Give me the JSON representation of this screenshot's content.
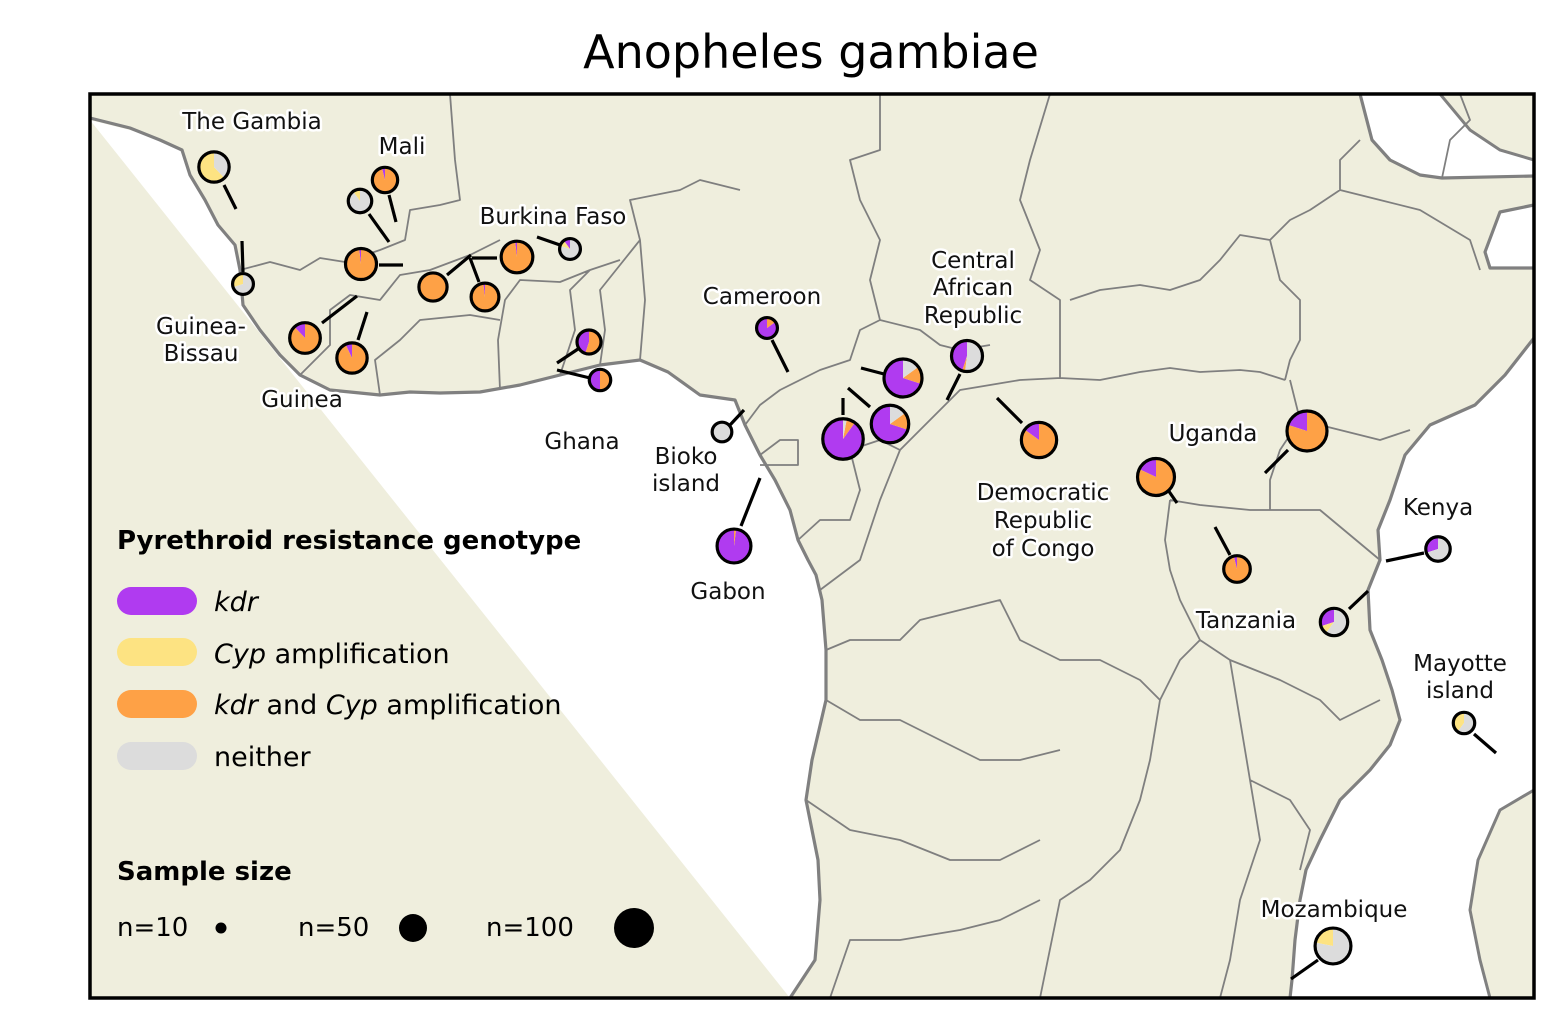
{
  "title": "Anopheles gambiae",
  "colors": {
    "kdr": "#b03bf0",
    "cyp": "#fde382",
    "kdr_cyp": "#fea146",
    "neither": "#dcdcdc",
    "land": "#efeedd",
    "sea": "#ffffff",
    "border": "#7f7f7f"
  },
  "country_labels": {
    "the_gambia": [
      "The Gambia"
    ],
    "mali": [
      "Mali"
    ],
    "burkina_faso": [
      "Burkina Faso"
    ],
    "guinea_bissau": [
      "Guinea-",
      "Bissau"
    ],
    "guinea": [
      "Guinea"
    ],
    "ghana": [
      "Ghana"
    ],
    "cameroon": [
      "Cameroon"
    ],
    "bioko": [
      "Bioko",
      "island"
    ],
    "gabon": [
      "Gabon"
    ],
    "car": [
      "Central",
      "African",
      "Republic"
    ],
    "drc": [
      "Democratic",
      "Republic",
      "of Congo"
    ],
    "uganda": [
      "Uganda"
    ],
    "kenya": [
      "Kenya"
    ],
    "tanzania": [
      "Tanzania"
    ],
    "mayotte": [
      "Mayotte",
      "island"
    ],
    "mozambique": [
      "Mozambique"
    ]
  },
  "legend": {
    "genotype_title": "Pyrethroid resistance genotype",
    "items": [
      {
        "key": "kdr",
        "pre_italic": "kdr",
        "text": ""
      },
      {
        "key": "cyp",
        "pre_italic": "Cyp",
        "text": " amplification"
      },
      {
        "key": "kdr_cyp",
        "pre_italic": "kdr",
        "mid": " and ",
        "post_italic": "Cyp",
        "text": " amplification"
      },
      {
        "key": "neither",
        "pre_italic": "",
        "text": "neither"
      }
    ],
    "size_title": "Sample size",
    "sizes": [
      {
        "label": "n=10",
        "n": 10
      },
      {
        "label": "n=50",
        "n": 50
      },
      {
        "label": "n=100",
        "n": 100
      }
    ]
  },
  "samples": [
    {
      "id": "gm",
      "country": "The Gambia",
      "n": 34,
      "fractions": {
        "kdr": 0,
        "cyp": 0.62,
        "kdr_cyp": 0,
        "neither": 0.38
      }
    },
    {
      "id": "ml-1",
      "country": "Mali",
      "n": 17,
      "fractions": {
        "kdr": 0,
        "cyp": 0.1,
        "kdr_cyp": 0,
        "neither": 0.9
      }
    },
    {
      "id": "ml-2",
      "country": "Mali",
      "n": 21,
      "fractions": {
        "kdr": 0.04,
        "cyp": 0,
        "kdr_cyp": 0.96,
        "neither": 0
      }
    },
    {
      "id": "gw",
      "country": "Guinea-Bissau",
      "n": 12,
      "fractions": {
        "kdr": 0,
        "cyp": 0.3,
        "kdr_cyp": 0,
        "neither": 0.7
      }
    },
    {
      "id": "ml-3",
      "country": "Mali",
      "n": 36,
      "fractions": {
        "kdr": 0.02,
        "cyp": 0,
        "kdr_cyp": 0.98,
        "neither": 0
      }
    },
    {
      "id": "gn-1",
      "country": "Guinea",
      "n": 35,
      "fractions": {
        "kdr": 0.12,
        "cyp": 0,
        "kdr_cyp": 0.88,
        "neither": 0
      }
    },
    {
      "id": "gn-2",
      "country": "Guinea",
      "n": 34,
      "fractions": {
        "kdr": 0.07,
        "cyp": 0,
        "kdr_cyp": 0.93,
        "neither": 0
      }
    },
    {
      "id": "bf-1",
      "country": "Burkina Faso",
      "n": 28,
      "fractions": {
        "kdr": 0,
        "cyp": 0,
        "kdr_cyp": 1,
        "neither": 0
      }
    },
    {
      "id": "bf-2",
      "country": "Burkina Faso",
      "n": 27,
      "fractions": {
        "kdr": 0.02,
        "cyp": 0,
        "kdr_cyp": 0.98,
        "neither": 0
      }
    },
    {
      "id": "bf-3",
      "country": "Burkina Faso",
      "n": 38,
      "fractions": {
        "kdr": 0.02,
        "cyp": 0,
        "kdr_cyp": 0.98,
        "neither": 0
      }
    },
    {
      "id": "bf-4",
      "country": "Burkina Faso",
      "n": 12,
      "fractions": {
        "kdr": 0.1,
        "cyp": 0.1,
        "kdr_cyp": 0,
        "neither": 0.8
      }
    },
    {
      "id": "gh-1",
      "country": "Ghana",
      "n": 18,
      "fractions": {
        "kdr": 0.45,
        "cyp": 0,
        "kdr_cyp": 0.55,
        "neither": 0
      }
    },
    {
      "id": "gh-2",
      "country": "Ghana",
      "n": 13,
      "fractions": {
        "kdr": 0.5,
        "cyp": 0,
        "kdr_cyp": 0.5,
        "neither": 0
      }
    },
    {
      "id": "cm-1",
      "country": "Cameroon",
      "n": 12,
      "fractions": {
        "kdr": 0.85,
        "cyp": 0,
        "kdr_cyp": 0.15,
        "neither": 0
      }
    },
    {
      "id": "bk",
      "country": "Bioko island",
      "n": 10,
      "fractions": {
        "kdr": 0,
        "cyp": 0,
        "kdr_cyp": 0,
        "neither": 1
      }
    },
    {
      "id": "cm-2",
      "country": "Cameroon",
      "n": 60,
      "fractions": {
        "kdr": 0.7,
        "cyp": 0,
        "kdr_cyp": 0.15,
        "neither": 0.15
      }
    },
    {
      "id": "cm-3",
      "country": "Cameroon",
      "n": 58,
      "fractions": {
        "kdr": 0.7,
        "cyp": 0,
        "kdr_cyp": 0.15,
        "neither": 0.15
      }
    },
    {
      "id": "cm-4",
      "country": "Cameroon",
      "n": 70,
      "fractions": {
        "kdr": 0.9,
        "cyp": 0,
        "kdr_cyp": 0.07,
        "neither": 0.03
      }
    },
    {
      "id": "cf",
      "country": "Central African Republic",
      "n": 36,
      "fractions": {
        "kdr": 0.45,
        "cyp": 0,
        "kdr_cyp": 0.03,
        "neither": 0.52
      }
    },
    {
      "id": "ga",
      "country": "Gabon",
      "n": 45,
      "fractions": {
        "kdr": 0.98,
        "cyp": 0,
        "kdr_cyp": 0.02,
        "neither": 0
      }
    },
    {
      "id": "cd",
      "country": "Democratic Republic of Congo",
      "n": 50,
      "fractions": {
        "kdr": 0.15,
        "cyp": 0,
        "kdr_cyp": 0.85,
        "neither": 0
      }
    },
    {
      "id": "ug-1",
      "country": "Uganda",
      "n": 56,
      "fractions": {
        "kdr": 0.18,
        "cyp": 0,
        "kdr_cyp": 0.82,
        "neither": 0
      }
    },
    {
      "id": "ug-2",
      "country": "Uganda",
      "n": 68,
      "fractions": {
        "kdr": 0.2,
        "cyp": 0,
        "kdr_cyp": 0.8,
        "neither": 0
      }
    },
    {
      "id": "tz-1",
      "country": "Tanzania",
      "n": 24,
      "fractions": {
        "kdr": 0.04,
        "cyp": 0,
        "kdr_cyp": 0.96,
        "neither": 0
      }
    },
    {
      "id": "tz-2",
      "country": "Tanzania",
      "n": 26,
      "fractions": {
        "kdr": 0.3,
        "cyp": 0.1,
        "kdr_cyp": 0,
        "neither": 0.6
      }
    },
    {
      "id": "ke",
      "country": "Kenya",
      "n": 19,
      "fractions": {
        "kdr": 0.3,
        "cyp": 0,
        "kdr_cyp": 0,
        "neither": 0.7
      }
    },
    {
      "id": "yt",
      "country": "Mayotte island",
      "n": 13,
      "fractions": {
        "kdr": 0,
        "cyp": 0.4,
        "kdr_cyp": 0,
        "neither": 0.6
      }
    },
    {
      "id": "mz",
      "country": "Mozambique",
      "n": 52,
      "fractions": {
        "kdr": 0,
        "cyp": 0.22,
        "kdr_cyp": 0,
        "neither": 0.78
      }
    }
  ]
}
